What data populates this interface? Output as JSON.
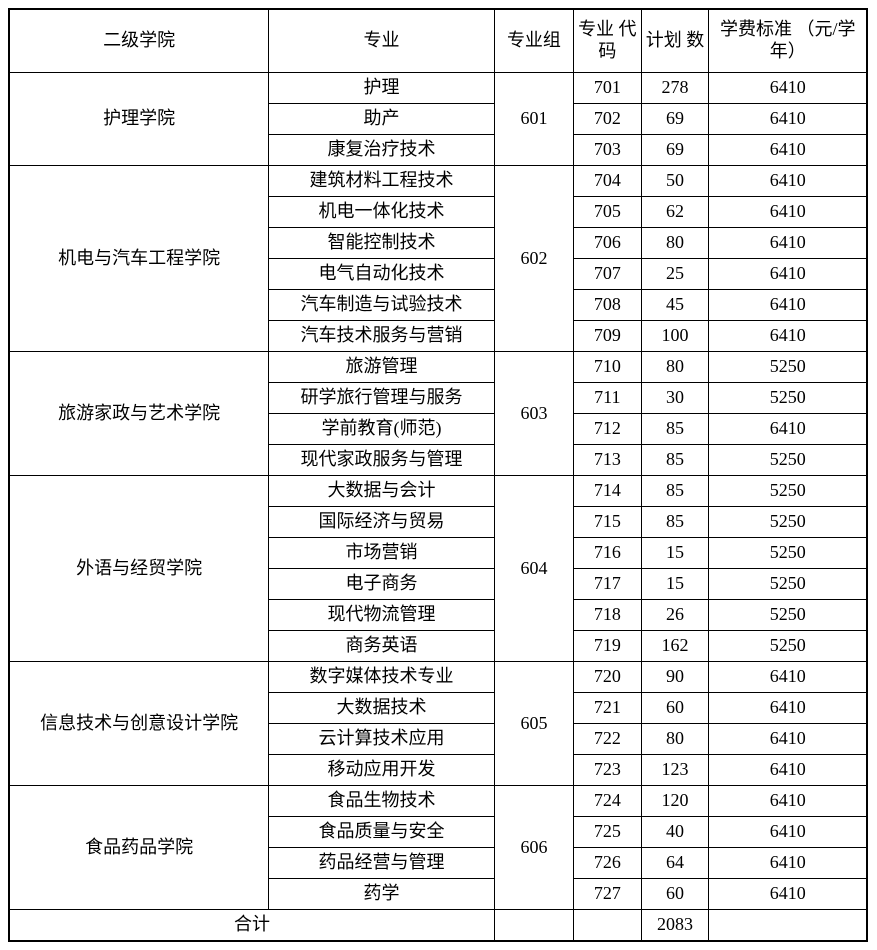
{
  "headers": {
    "college": "二级学院",
    "major": "专业",
    "group": "专业组",
    "code": "专业\n代码",
    "plan": "计划\n数",
    "tuition": "学费标准\n（元/学年）"
  },
  "colleges": [
    {
      "name": "护理学院",
      "group": "601",
      "majors": [
        {
          "name": "护理",
          "code": "701",
          "plan": "278",
          "tuition": "6410"
        },
        {
          "name": "助产",
          "code": "702",
          "plan": "69",
          "tuition": "6410"
        },
        {
          "name": "康复治疗技术",
          "code": "703",
          "plan": "69",
          "tuition": "6410"
        }
      ]
    },
    {
      "name": "机电与汽车工程学院",
      "group": "602",
      "majors": [
        {
          "name": "建筑材料工程技术",
          "code": "704",
          "plan": "50",
          "tuition": "6410"
        },
        {
          "name": "机电一体化技术",
          "code": "705",
          "plan": "62",
          "tuition": "6410"
        },
        {
          "name": "智能控制技术",
          "code": "706",
          "plan": "80",
          "tuition": "6410"
        },
        {
          "name": "电气自动化技术",
          "code": "707",
          "plan": "25",
          "tuition": "6410"
        },
        {
          "name": "汽车制造与试验技术",
          "code": "708",
          "plan": "45",
          "tuition": "6410"
        },
        {
          "name": "汽车技术服务与营销",
          "code": "709",
          "plan": "100",
          "tuition": "6410"
        }
      ]
    },
    {
      "name": "旅游家政与艺术学院",
      "group": "603",
      "majors": [
        {
          "name": "旅游管理",
          "code": "710",
          "plan": "80",
          "tuition": "5250"
        },
        {
          "name": "研学旅行管理与服务",
          "code": "711",
          "plan": "30",
          "tuition": "5250"
        },
        {
          "name": "学前教育(师范)",
          "code": "712",
          "plan": "85",
          "tuition": "6410"
        },
        {
          "name": "现代家政服务与管理",
          "code": "713",
          "plan": "85",
          "tuition": "5250"
        }
      ]
    },
    {
      "name": "外语与经贸学院",
      "group": "604",
      "majors": [
        {
          "name": "大数据与会计",
          "code": "714",
          "plan": "85",
          "tuition": "5250"
        },
        {
          "name": "国际经济与贸易",
          "code": "715",
          "plan": "85",
          "tuition": "5250"
        },
        {
          "name": "市场营销",
          "code": "716",
          "plan": "15",
          "tuition": "5250"
        },
        {
          "name": "电子商务",
          "code": "717",
          "plan": "15",
          "tuition": "5250"
        },
        {
          "name": "现代物流管理",
          "code": "718",
          "plan": "26",
          "tuition": "5250"
        },
        {
          "name": "商务英语",
          "code": "719",
          "plan": "162",
          "tuition": "5250"
        }
      ]
    },
    {
      "name": "信息技术与创意设计学院",
      "group": "605",
      "majors": [
        {
          "name": "数字媒体技术专业",
          "code": "720",
          "plan": "90",
          "tuition": "6410"
        },
        {
          "name": "大数据技术",
          "code": "721",
          "plan": "60",
          "tuition": "6410"
        },
        {
          "name": "云计算技术应用",
          "code": "722",
          "plan": "80",
          "tuition": "6410"
        },
        {
          "name": "移动应用开发",
          "code": "723",
          "plan": "123",
          "tuition": "6410"
        }
      ]
    },
    {
      "name": "食品药品学院",
      "group": "606",
      "majors": [
        {
          "name": "食品生物技术",
          "code": "724",
          "plan": "120",
          "tuition": "6410"
        },
        {
          "name": "食品质量与安全",
          "code": "725",
          "plan": "40",
          "tuition": "6410"
        },
        {
          "name": "药品经营与管理",
          "code": "726",
          "plan": "64",
          "tuition": "6410"
        },
        {
          "name": "药学",
          "code": "727",
          "plan": "60",
          "tuition": "6410"
        }
      ]
    }
  ],
  "total": {
    "label": "合计",
    "plan": "2083"
  }
}
